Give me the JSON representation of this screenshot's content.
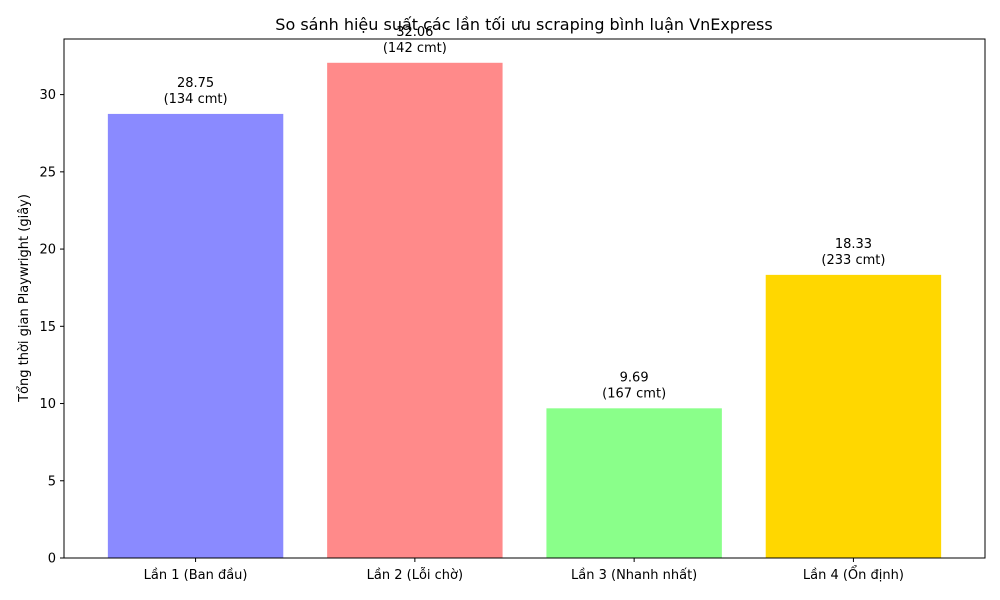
{
  "chart_data": {
    "type": "bar",
    "title": "So sánh hiệu suất các lần tối ưu scraping bình luận VnExpress",
    "xlabel": "",
    "ylabel": "Tổng thời gian Playwright (giây)",
    "categories": [
      "Lần 1 (Ban đầu)",
      "Lần 2 (Lỗi chờ)",
      "Lần 3 (Nhanh nhất)",
      "Lần 4 (Ổn định)"
    ],
    "values": [
      28.75,
      32.06,
      9.69,
      18.33
    ],
    "value_labels": [
      "28.75",
      "32.06",
      "9.69",
      "18.33"
    ],
    "comment_labels": [
      "(134 cmt)",
      "(142 cmt)",
      "(167 cmt)",
      "(233 cmt)"
    ],
    "colors": [
      "#8a8aff",
      "#ff8a8a",
      "#8aff8a",
      "#ffd700"
    ],
    "ylim": [
      0,
      33.6
    ],
    "yticks": [
      0,
      5,
      10,
      15,
      20,
      25,
      30
    ],
    "ytick_labels": [
      "0",
      "5",
      "10",
      "15",
      "20",
      "25",
      "30"
    ],
    "grid": false,
    "legend": "none"
  }
}
